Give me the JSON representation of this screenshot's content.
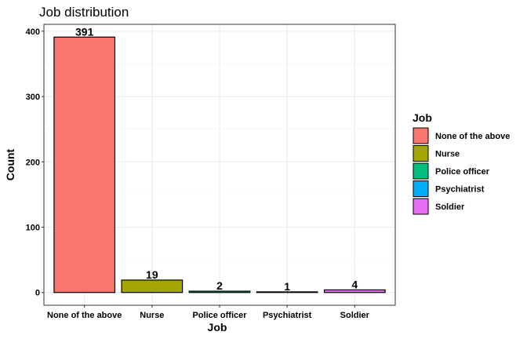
{
  "chart_data": {
    "type": "bar",
    "title": "Job distribution",
    "xlabel": "Job",
    "ylabel": "Count",
    "categories": [
      "None of the above",
      "Nurse",
      "Police officer",
      "Psychiatrist",
      "Soldier"
    ],
    "values": [
      391,
      19,
      2,
      1,
      4
    ],
    "data_labels": [
      "391",
      "19",
      "2",
      "1",
      "4"
    ],
    "colors": [
      "#F8766D",
      "#A3A500",
      "#00BF7D",
      "#00B0F6",
      "#E76BF3"
    ],
    "ylim": [
      -19.55,
      410.55
    ],
    "yticks": [
      0,
      100,
      200,
      300,
      400
    ],
    "ytick_labels": [
      "0",
      "100",
      "200",
      "300",
      "400"
    ],
    "grid": true,
    "legend": {
      "title": "Job",
      "position": "right",
      "entries": [
        "None of the above",
        "Nurse",
        "Police officer",
        "Psychiatrist",
        "Soldier"
      ]
    }
  }
}
